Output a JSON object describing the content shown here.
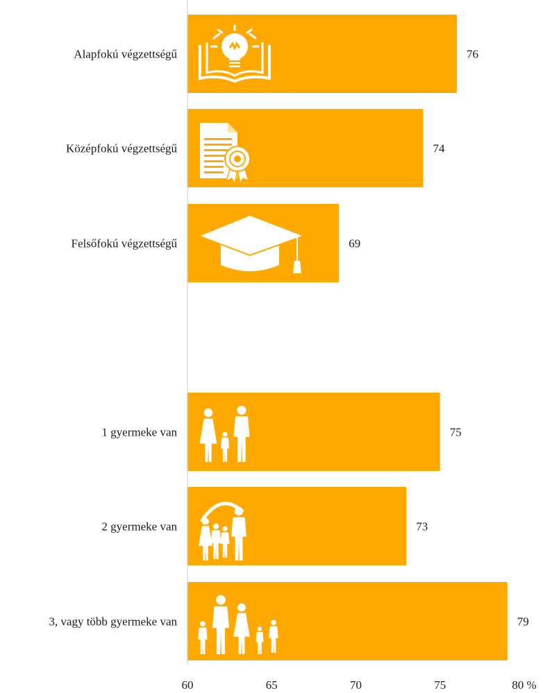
{
  "chart_data": {
    "type": "bar",
    "orientation": "horizontal",
    "categories": [
      "Alapfokú végzettségű",
      "Középfokú végzettségű",
      "Felsőfokú végzettségű",
      "1 gyermeke van",
      "2 gyermeke van",
      "3, vagy több gyermeke van"
    ],
    "values": [
      76,
      74,
      69,
      75,
      73,
      79
    ],
    "value_labels": [
      "76",
      "74",
      "69",
      "75",
      "73",
      "79"
    ],
    "icons": [
      "lightbulb-book-icon",
      "certificate-document-icon",
      "graduation-cap-icon",
      "family-one-child-icon",
      "family-two-children-icon",
      "family-three-children-icon"
    ],
    "groups": [
      {
        "categories": [
          0,
          1,
          2
        ]
      },
      {
        "categories": [
          3,
          4,
          5
        ]
      }
    ],
    "xlim": [
      60,
      80
    ],
    "xticks": [
      60,
      65,
      70,
      75,
      80
    ],
    "xtick_labels": [
      "60",
      "65",
      "70",
      "75",
      "80 %"
    ],
    "title": "",
    "xlabel": "",
    "ylabel": "",
    "grid": false,
    "bar_color": "#FFA800",
    "icon_color": "#ffffff",
    "axis_color": "#c8c8c8",
    "text_color": "#1a1a1a"
  }
}
